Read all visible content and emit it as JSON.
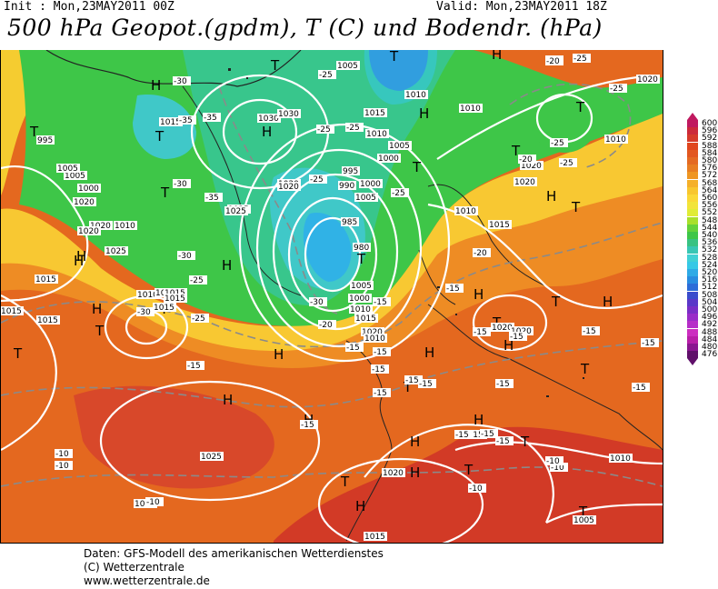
{
  "header": {
    "init": "Init : Mon,23MAY2011 00Z",
    "valid": "Valid: Mon,23MAY2011 18Z",
    "title": "500 hPa Geopot.(gpdm), T (C) und Bodendr. (hPa)"
  },
  "map": {
    "pressure_centers": [
      {
        "label": "T"
      },
      {
        "label": "T"
      },
      {
        "label": "T"
      },
      {
        "label": "T"
      },
      {
        "label": "T"
      },
      {
        "label": "T"
      },
      {
        "label": "T"
      },
      {
        "label": "T"
      },
      {
        "label": "T"
      },
      {
        "label": "T"
      },
      {
        "label": "T"
      },
      {
        "label": "T"
      },
      {
        "label": "T"
      },
      {
        "label": "T"
      },
      {
        "label": "T"
      },
      {
        "label": "T"
      },
      {
        "label": "T"
      },
      {
        "label": "T"
      },
      {
        "label": "T"
      },
      {
        "label": "T"
      },
      {
        "label": "T"
      },
      {
        "label": "H"
      },
      {
        "label": "H"
      },
      {
        "label": "H"
      },
      {
        "label": "H"
      },
      {
        "label": "H"
      },
      {
        "label": "H"
      },
      {
        "label": "H"
      },
      {
        "label": "H"
      },
      {
        "label": "H"
      },
      {
        "label": "H"
      },
      {
        "label": "H"
      },
      {
        "label": "H"
      },
      {
        "label": "H"
      },
      {
        "label": "H"
      },
      {
        "label": "H"
      },
      {
        "label": "H"
      },
      {
        "label": "H"
      },
      {
        "label": "H"
      },
      {
        "label": "H"
      },
      {
        "label": "H"
      }
    ],
    "isobar_labels": [
      "1005",
      "1010",
      "1030",
      "1025",
      "1020",
      "1015",
      "1010",
      "1005",
      "1000",
      "995",
      "990",
      "985",
      "980",
      "1005",
      "1000",
      "1010",
      "1015",
      "1020",
      "1015",
      "1010",
      "1020",
      "1015",
      "1020",
      "1020",
      "1025",
      "1020",
      "1015",
      "1010",
      "1005",
      "1000",
      "1020",
      "1015",
      "1015",
      "1015",
      "1025",
      "1020",
      "1015",
      "1020",
      "1010",
      "1015",
      "1005",
      "1020",
      "1030",
      "1010",
      "995",
      "1010",
      "1000",
      "1005",
      "1010",
      "1020",
      "1025",
      "1020",
      "1015",
      "1015",
      "1015",
      "1005",
      "1010"
    ],
    "isotherm_labels": [
      "-30",
      "-25",
      "-35",
      "-30",
      "-25",
      "-25",
      "-30",
      "-35",
      "-35",
      "-30",
      "-25",
      "-25",
      "-25",
      "-30",
      "-25",
      "-20",
      "-20",
      "-15",
      "-15",
      "-15",
      "-15",
      "-15",
      "-15",
      "-15",
      "-15",
      "-15",
      "-15",
      "-15",
      "-15",
      "-15",
      "-15",
      "-15",
      "-10",
      "-10",
      "-10",
      "-10",
      "-10",
      "-25",
      "-25",
      "-20",
      "-25",
      "-25",
      "-25",
      "-20",
      "-15",
      "-15",
      "-15",
      "-15",
      "-15",
      "-10"
    ]
  },
  "legend": [
    "600",
    "596",
    "592",
    "588",
    "584",
    "580",
    "576",
    "572",
    "568",
    "564",
    "560",
    "556",
    "552",
    "548",
    "544",
    "540",
    "536",
    "532",
    "528",
    "524",
    "520",
    "516",
    "512",
    "508",
    "504",
    "500",
    "496",
    "492",
    "488",
    "484",
    "480",
    "476"
  ],
  "legend_colors": [
    "#c0195f",
    "#cc2a3a",
    "#d63a2a",
    "#e0461e",
    "#e25720",
    "#e46a22",
    "#e87e22",
    "#ef9622",
    "#f5b02a",
    "#f8c62e",
    "#fbd836",
    "#f2e43a",
    "#e0ec36",
    "#a8e02a",
    "#64d23a",
    "#3ec648",
    "#38c282",
    "#38c6b4",
    "#40d0d4",
    "#36c8e6",
    "#2eaae6",
    "#288ce0",
    "#2c6cd8",
    "#3a4ccc",
    "#5a38c8",
    "#7a2ec6",
    "#9a2cc8",
    "#b62ec8",
    "#cc2ec0",
    "#b81fa8",
    "#8a1690",
    "#60106a"
  ],
  "credits": {
    "line1": "Daten: GFS-Modell des amerikanischen Wetterdienstes",
    "line2": "(C) Wetterzentrale",
    "line3": "www.wetterzentrale.de"
  }
}
